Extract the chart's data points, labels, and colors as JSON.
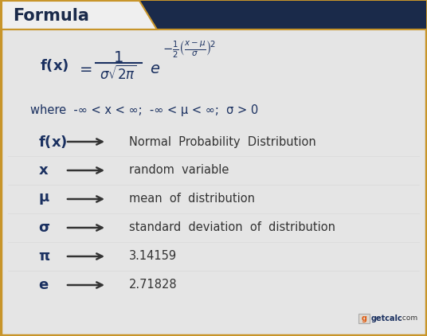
{
  "bg_color": "#e5e5e5",
  "header_bg": "#1a2a4a",
  "header_text": "Formula",
  "header_text_color": "#1a2a4a",
  "border_color": "#c8952a",
  "formula_color": "#1a3060",
  "arrow_color": "#333333",
  "text_color": "#333333",
  "where_text": "where  -∞ < x < ∞;  -∞ < μ < ∞;  σ > 0",
  "symbols": [
    "f(x)",
    "x",
    "μ",
    "σ",
    "π",
    "e"
  ],
  "descriptions": [
    "Normal  Probability  Distribution",
    "random  variable",
    "mean  of  distribution",
    "standard  deviation  of  distribution",
    "3.14159",
    "2.71828"
  ],
  "orange_color": "#e05a10",
  "logo_blue": "#1a3060"
}
